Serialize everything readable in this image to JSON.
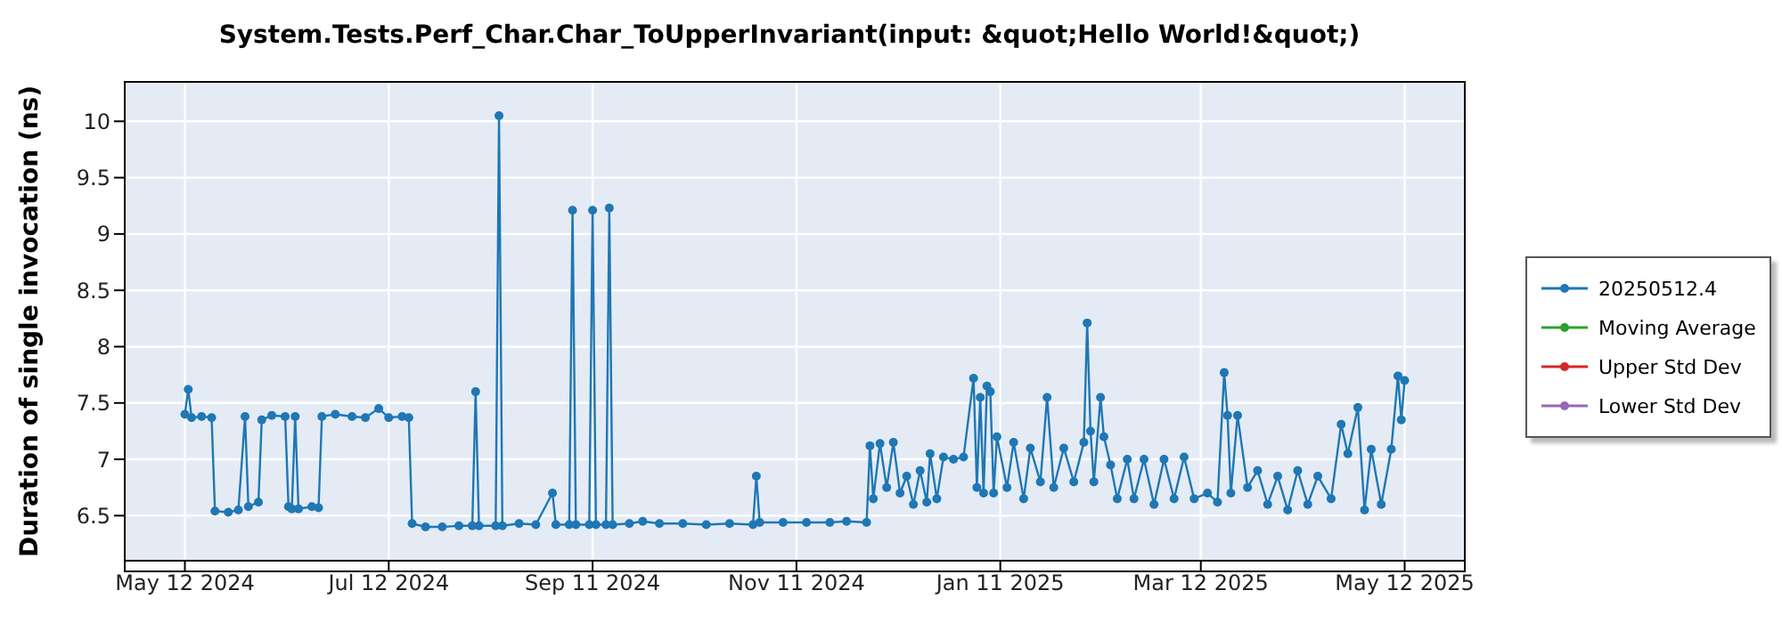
{
  "chart_data": {
    "type": "line",
    "title": "System.Tests.Perf_Char.Char_ToUpperInvariant(input: &quot;Hello World!&quot;)",
    "ylabel": "Duration of single invocation (ns)",
    "xlim": [
      "2024-04-24",
      "2025-05-30"
    ],
    "xticks": [
      {
        "value": "2024-05-12",
        "label": "May 12 2024"
      },
      {
        "value": "2024-07-12",
        "label": "Jul 12 2024"
      },
      {
        "value": "2024-09-11",
        "label": "Sep 11 2024"
      },
      {
        "value": "2024-11-11",
        "label": "Nov 11 2024"
      },
      {
        "value": "2025-01-11",
        "label": "Jan 11 2025"
      },
      {
        "value": "2025-03-12",
        "label": "Mar 12 2025"
      },
      {
        "value": "2025-05-12",
        "label": "May 12 2025"
      }
    ],
    "ylim": [
      6.1,
      10.35
    ],
    "yticks": [
      6.5,
      7,
      7.5,
      8,
      8.5,
      9,
      9.5,
      10
    ],
    "grid": true,
    "legend": "right",
    "marker": "circle",
    "line_style": "solid",
    "series": [
      {
        "name": "20250512.4",
        "color": "#1f77b4",
        "x": [
          "2024-05-12",
          "2024-05-13",
          "2024-05-14",
          "2024-05-17",
          "2024-05-20",
          "2024-05-21",
          "2024-05-25",
          "2024-05-28",
          "2024-05-30",
          "2024-05-31",
          "2024-06-03",
          "2024-06-04",
          "2024-06-07",
          "2024-06-11",
          "2024-06-12",
          "2024-06-13",
          "2024-06-14",
          "2024-06-15",
          "2024-06-19",
          "2024-06-21",
          "2024-06-22",
          "2024-06-26",
          "2024-07-01",
          "2024-07-05",
          "2024-07-09",
          "2024-07-12",
          "2024-07-16",
          "2024-07-18",
          "2024-07-19",
          "2024-07-23",
          "2024-07-28",
          "2024-08-02",
          "2024-08-06",
          "2024-08-07",
          "2024-08-08",
          "2024-08-13",
          "2024-08-14",
          "2024-08-15",
          "2024-08-20",
          "2024-08-25",
          "2024-08-30",
          "2024-08-31",
          "2024-09-04",
          "2024-09-05",
          "2024-09-06",
          "2024-09-10",
          "2024-09-11",
          "2024-09-12",
          "2024-09-15",
          "2024-09-16",
          "2024-09-17",
          "2024-09-22",
          "2024-09-26",
          "2024-10-01",
          "2024-10-08",
          "2024-10-15",
          "2024-10-22",
          "2024-10-29",
          "2024-10-30",
          "2024-10-31",
          "2024-11-07",
          "2024-11-14",
          "2024-11-21",
          "2024-11-26",
          "2024-12-02",
          "2024-12-03",
          "2024-12-04",
          "2024-12-06",
          "2024-12-08",
          "2024-12-10",
          "2024-12-12",
          "2024-12-14",
          "2024-12-16",
          "2024-12-18",
          "2024-12-20",
          "2024-12-21",
          "2024-12-23",
          "2024-12-25",
          "2024-12-28",
          "2024-12-31",
          "2025-01-03",
          "2025-01-04",
          "2025-01-05",
          "2025-01-06",
          "2025-01-07",
          "2025-01-08",
          "2025-01-09",
          "2025-01-10",
          "2025-01-13",
          "2025-01-15",
          "2025-01-18",
          "2025-01-20",
          "2025-01-23",
          "2025-01-25",
          "2025-01-27",
          "2025-01-30",
          "2025-02-02",
          "2025-02-05",
          "2025-02-06",
          "2025-02-07",
          "2025-02-08",
          "2025-02-10",
          "2025-02-11",
          "2025-02-13",
          "2025-02-15",
          "2025-02-18",
          "2025-02-20",
          "2025-02-23",
          "2025-02-26",
          "2025-03-01",
          "2025-03-04",
          "2025-03-07",
          "2025-03-10",
          "2025-03-14",
          "2025-03-17",
          "2025-03-19",
          "2025-03-20",
          "2025-03-21",
          "2025-03-23",
          "2025-03-26",
          "2025-03-29",
          "2025-04-01",
          "2025-04-04",
          "2025-04-07",
          "2025-04-10",
          "2025-04-13",
          "2025-04-16",
          "2025-04-20",
          "2025-04-23",
          "2025-04-25",
          "2025-04-28",
          "2025-04-30",
          "2025-05-02",
          "2025-05-05",
          "2025-05-08",
          "2025-05-10",
          "2025-05-11",
          "2025-05-12"
        ],
        "values": [
          7.4,
          7.62,
          7.37,
          7.38,
          7.37,
          6.54,
          6.53,
          6.55,
          7.38,
          6.58,
          6.62,
          7.35,
          7.39,
          7.38,
          6.58,
          6.56,
          7.38,
          6.56,
          6.58,
          6.57,
          7.38,
          7.4,
          7.38,
          7.37,
          7.45,
          7.37,
          7.38,
          7.37,
          6.43,
          6.4,
          6.4,
          6.41,
          6.41,
          7.6,
          6.41,
          6.41,
          10.05,
          6.41,
          6.43,
          6.42,
          6.7,
          6.42,
          6.42,
          9.21,
          6.42,
          6.42,
          9.21,
          6.42,
          6.42,
          9.23,
          6.42,
          6.43,
          6.45,
          6.43,
          6.43,
          6.42,
          6.43,
          6.42,
          6.85,
          6.44,
          6.44,
          6.44,
          6.44,
          6.45,
          6.44,
          7.12,
          6.65,
          7.14,
          6.75,
          7.15,
          6.7,
          6.85,
          6.6,
          6.9,
          6.62,
          7.05,
          6.65,
          7.02,
          7.0,
          7.02,
          7.72,
          6.75,
          7.55,
          6.7,
          7.65,
          7.6,
          6.7,
          7.2,
          6.75,
          7.15,
          6.65,
          7.1,
          6.8,
          7.55,
          6.75,
          7.1,
          6.8,
          7.15,
          8.21,
          7.25,
          6.8,
          7.55,
          7.2,
          6.95,
          6.65,
          7.0,
          6.65,
          7.0,
          6.6,
          7.0,
          6.65,
          7.02,
          6.65,
          6.7,
          6.62,
          7.77,
          7.39,
          6.7,
          7.39,
          6.75,
          6.9,
          6.6,
          6.85,
          6.55,
          6.9,
          6.6,
          6.85,
          6.65,
          7.31,
          7.05,
          7.46,
          6.55,
          7.09,
          6.6,
          7.09,
          7.74,
          7.35,
          7.7
        ]
      },
      {
        "name": "Moving Average",
        "color": "#2ca02c"
      },
      {
        "name": "Upper Std Dev",
        "color": "#d62728"
      },
      {
        "name": "Lower Std Dev",
        "color": "#9467bd"
      }
    ]
  }
}
